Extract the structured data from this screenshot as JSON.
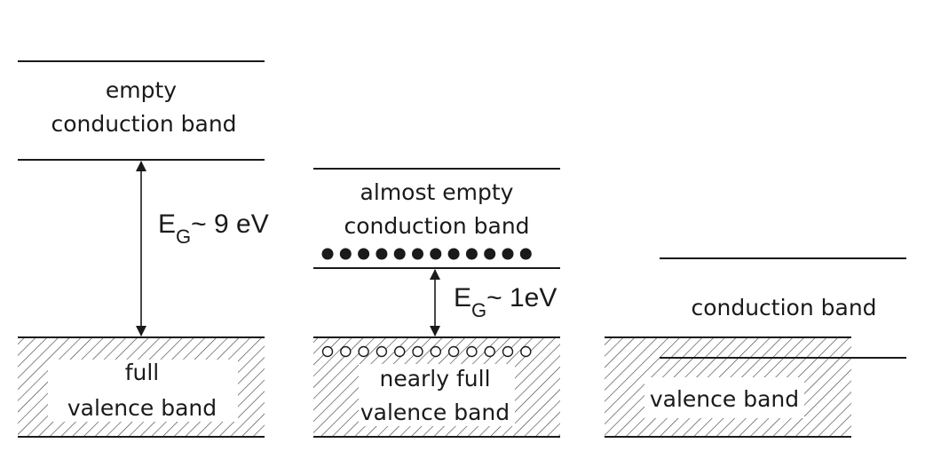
{
  "colors": {
    "ink": "#1a1a1a",
    "background": "#ffffff"
  },
  "panels": [
    {
      "conduction_label": [
        "empty",
        "conduction band"
      ],
      "valence_label": [
        "full",
        "valence band"
      ],
      "gap": {
        "symbol": "E",
        "subscript": "G",
        "value": "~ 9 eV"
      }
    },
    {
      "conduction_label": [
        "almost empty",
        "conduction band"
      ],
      "valence_label": [
        "nearly full",
        "valence band"
      ],
      "gap": {
        "symbol": "E",
        "subscript": "G",
        "value": "~ 1eV"
      },
      "electrons": 12,
      "holes": 12
    },
    {
      "conduction_label": "conduction band",
      "valence_label": "valence band"
    }
  ]
}
